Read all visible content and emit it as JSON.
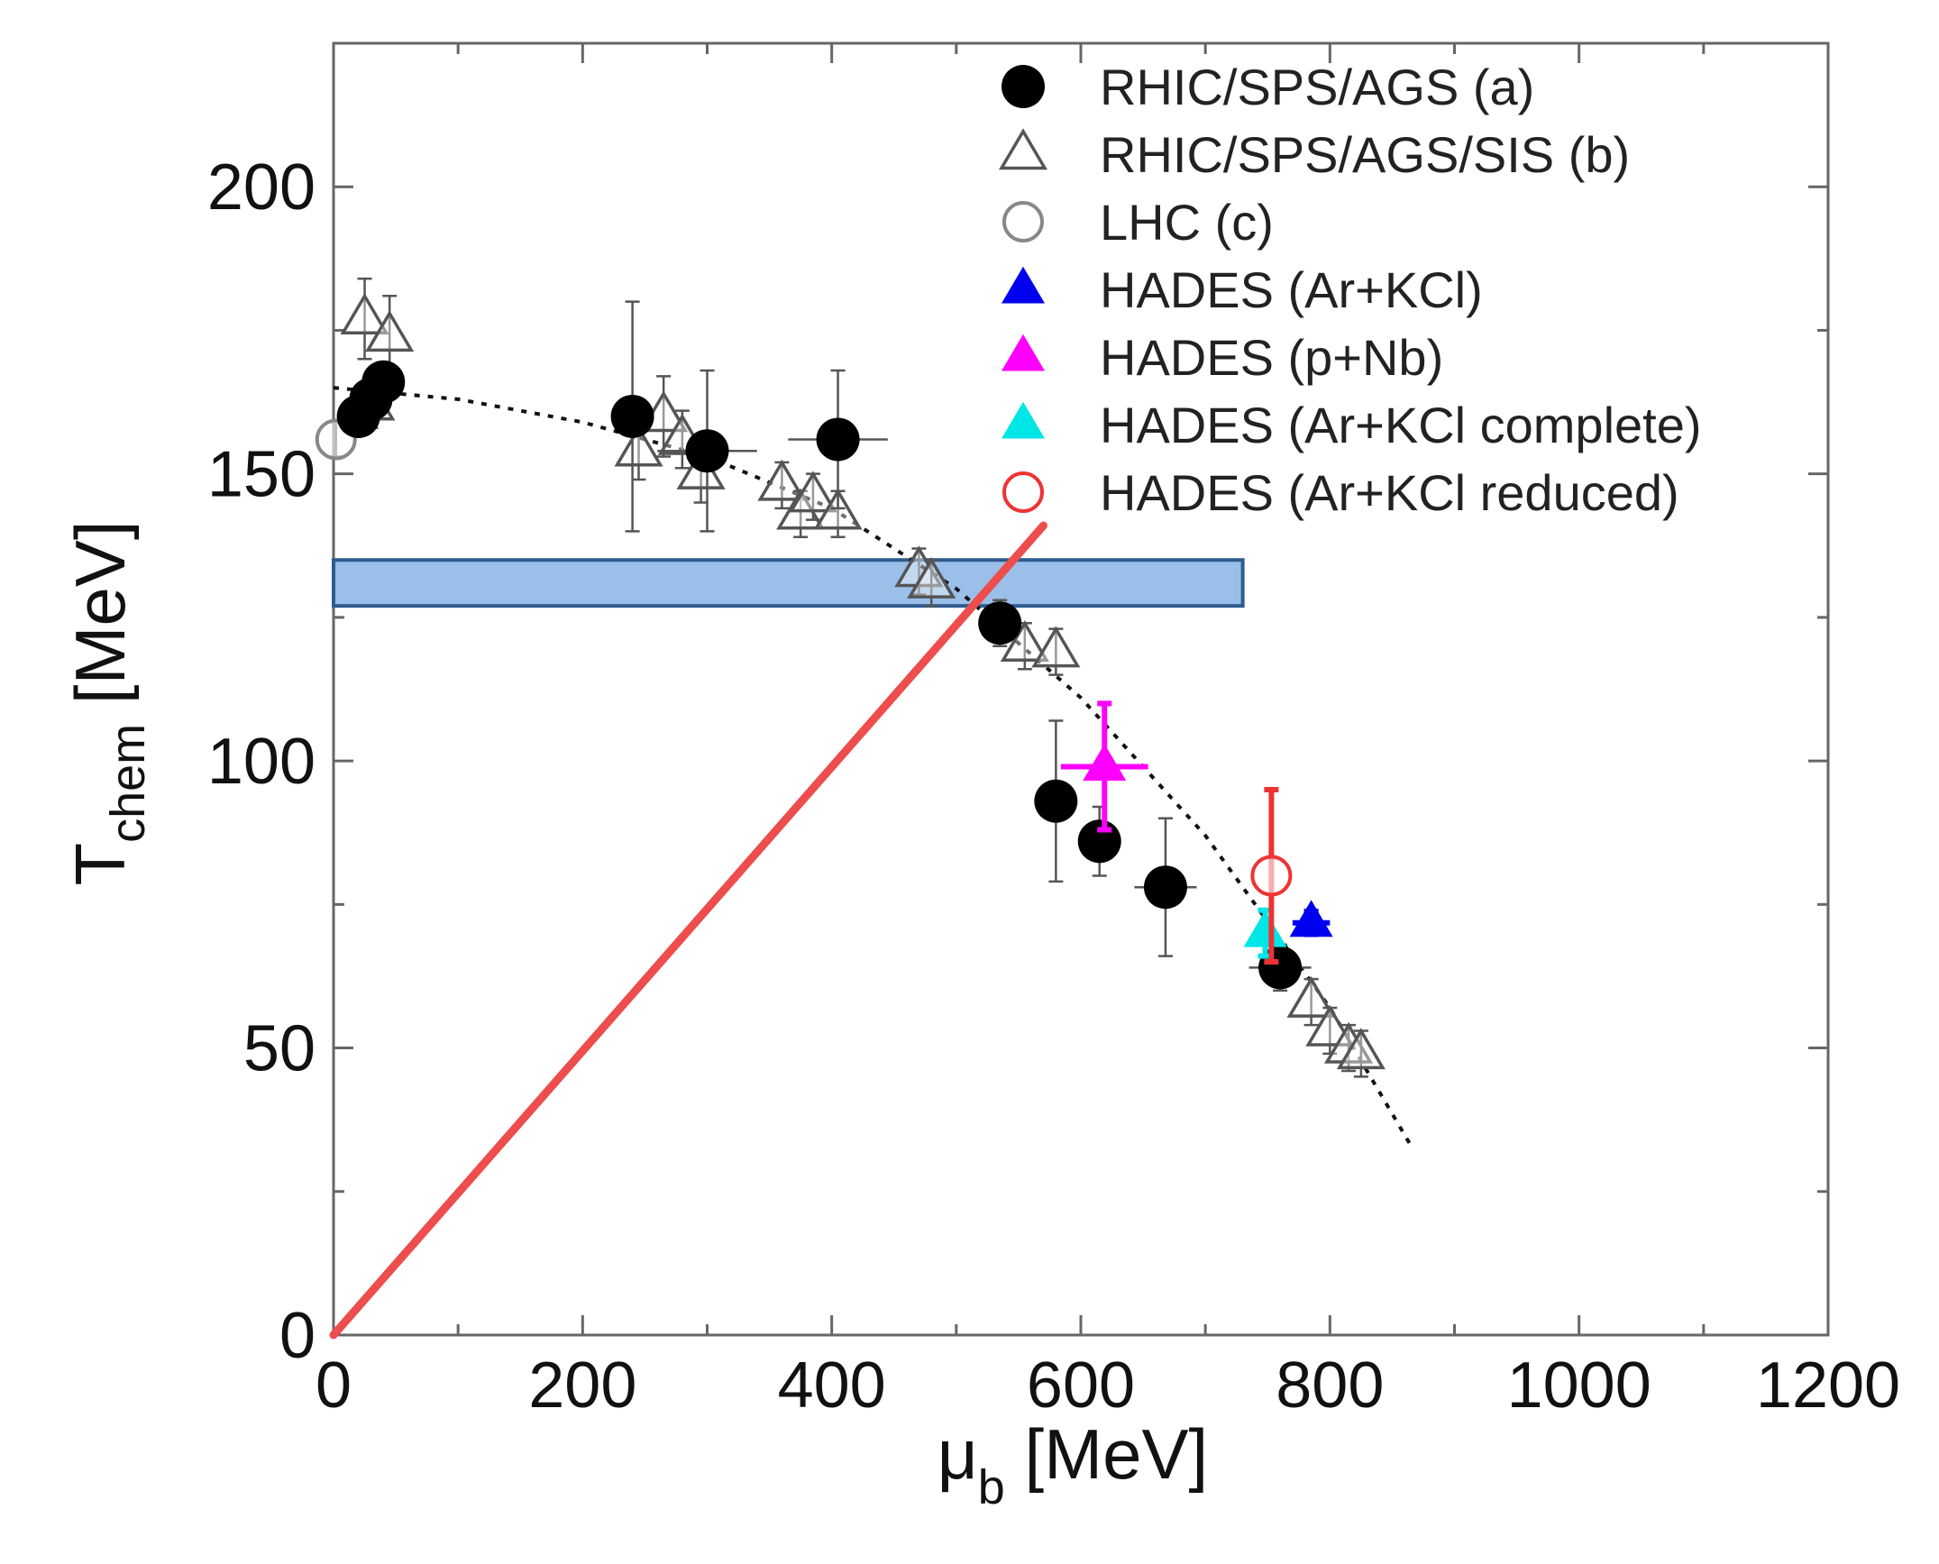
{
  "chart_data": {
    "type": "scatter",
    "xlabel": {
      "main": "μ",
      "sub": "b",
      "unit": " [MeV]"
    },
    "ylabel": {
      "main": "T",
      "sub": "chem",
      "unit": " [MeV]"
    },
    "xlim": [
      0,
      1200
    ],
    "ylim": [
      0,
      225
    ],
    "x_ticks": [
      0,
      200,
      400,
      600,
      800,
      1000,
      1200
    ],
    "y_ticks": [
      0,
      50,
      100,
      150,
      200
    ],
    "grid": false,
    "legend_position": "top-right",
    "series": [
      {
        "name": "RHIC/SPS/AGS (a)",
        "marker": "filled-circle",
        "color": "#000000",
        "points": [
          {
            "x": 20,
            "y": 160,
            "ey": 3
          },
          {
            "x": 30,
            "y": 163,
            "ey": 3
          },
          {
            "x": 40,
            "y": 166,
            "ey": 3
          },
          {
            "x": 240,
            "y": 160,
            "ey": 20,
            "ex": 10
          },
          {
            "x": 300,
            "y": 154,
            "ey": 14,
            "ex": 40
          },
          {
            "x": 405,
            "y": 156,
            "ey": 12,
            "ex": 40
          },
          {
            "x": 535,
            "y": 124,
            "ey": 4,
            "ex": 10
          },
          {
            "x": 580,
            "y": 93,
            "ey": 14,
            "ex": 10
          },
          {
            "x": 615,
            "y": 86,
            "ey": 6,
            "ex": 10
          },
          {
            "x": 668,
            "y": 78,
            "ey": 12,
            "ex": 25
          },
          {
            "x": 760,
            "y": 64,
            "ey": 4,
            "ex": 25
          }
        ]
      },
      {
        "name": "RHIC/SPS/AGS/SIS (b)",
        "marker": "open-triangle",
        "color": "#555555",
        "points": [
          {
            "x": 25,
            "y": 177,
            "ey": 7
          },
          {
            "x": 45,
            "y": 174,
            "ey": 7
          },
          {
            "x": 30,
            "y": 162,
            "ey": 4
          },
          {
            "x": 245,
            "y": 154,
            "ey": 5
          },
          {
            "x": 265,
            "y": 160,
            "ey": 7
          },
          {
            "x": 280,
            "y": 156,
            "ey": 5
          },
          {
            "x": 295,
            "y": 150,
            "ey": 5
          },
          {
            "x": 360,
            "y": 148,
            "ey": 4
          },
          {
            "x": 375,
            "y": 143,
            "ey": 4
          },
          {
            "x": 385,
            "y": 146,
            "ey": 4
          },
          {
            "x": 405,
            "y": 143,
            "ey": 4
          },
          {
            "x": 470,
            "y": 133,
            "ey": 4
          },
          {
            "x": 480,
            "y": 131,
            "ey": 4
          },
          {
            "x": 555,
            "y": 120,
            "ey": 4
          },
          {
            "x": 580,
            "y": 119,
            "ey": 4
          },
          {
            "x": 785,
            "y": 58,
            "ey": 4
          },
          {
            "x": 800,
            "y": 53,
            "ey": 4
          },
          {
            "x": 815,
            "y": 50,
            "ey": 4
          },
          {
            "x": 825,
            "y": 49,
            "ey": 4
          }
        ]
      },
      {
        "name": "LHC (c)",
        "marker": "open-circle",
        "color": "#888888",
        "points": [
          {
            "x": 2,
            "y": 156,
            "ey": 3
          }
        ]
      },
      {
        "name": "HADES (Ar+KCl)",
        "marker": "filled-triangle",
        "color": "#0000ee",
        "points": [
          {
            "x": 785,
            "y": 71.8,
            "ey": 2,
            "ex": 15
          }
        ]
      },
      {
        "name": "HADES (p+Nb)",
        "marker": "filled-triangle",
        "color": "#ff00ff",
        "points": [
          {
            "x": 619,
            "y": 99,
            "ey": 11,
            "ex": 35
          }
        ]
      },
      {
        "name": "HADES (Ar+KCl complete)",
        "marker": "filled-triangle",
        "color": "#00e5e5",
        "points": [
          {
            "x": 748,
            "y": 70,
            "ey": 4
          }
        ]
      },
      {
        "name": "HADES (Ar+KCl reduced)",
        "marker": "open-circle",
        "color": "#ee3333",
        "points": [
          {
            "x": 753,
            "y": 80,
            "ey": 15
          }
        ]
      }
    ],
    "freezeout_curve": [
      [
        0,
        165
      ],
      [
        100,
        163
      ],
      [
        200,
        159
      ],
      [
        300,
        153
      ],
      [
        400,
        144
      ],
      [
        500,
        130
      ],
      [
        600,
        111
      ],
      [
        700,
        87
      ],
      [
        800,
        57
      ],
      [
        865,
        33
      ]
    ],
    "band": {
      "x": [
        0,
        730
      ],
      "y": [
        127,
        135
      ],
      "fill": "#8fb8e6",
      "stroke": "#2d5b8f"
    },
    "red_line": {
      "from": [
        0,
        0
      ],
      "to": [
        570,
        141
      ],
      "color": "#ee4d4d"
    }
  }
}
